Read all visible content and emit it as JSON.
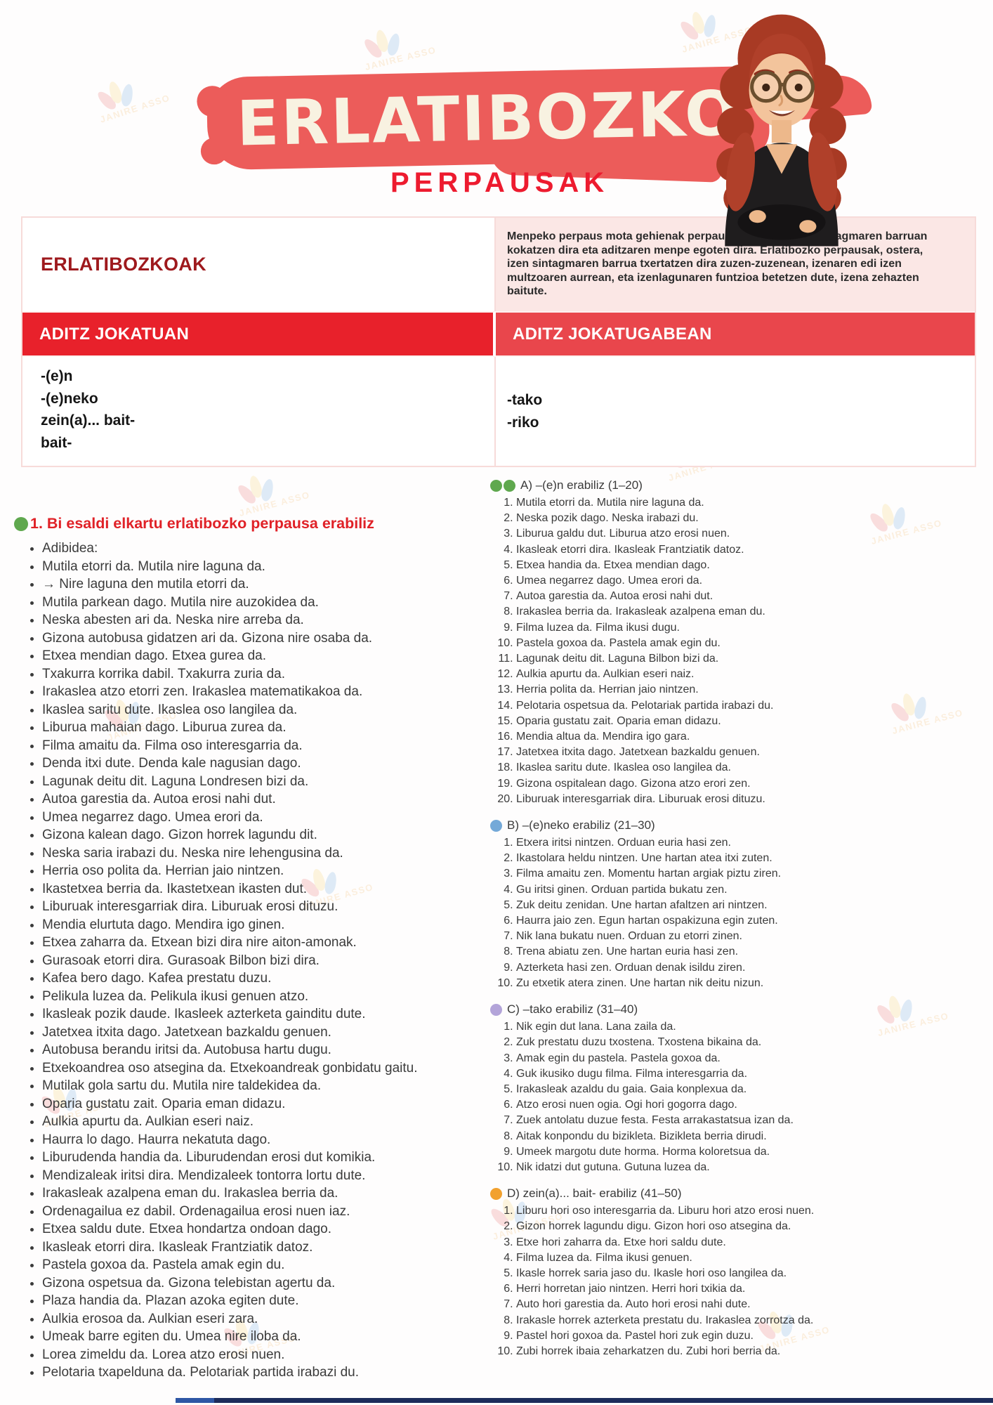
{
  "page": {
    "banner_title": "ERLATIBOZKO",
    "subtitle": "PERPAUSAK",
    "watermark": "JANIRE ASSO"
  },
  "colors": {
    "banner_red": "#ec5c5a",
    "subtitle_red": "#ed1b2f",
    "header_red_left": "#e8212b",
    "header_red_right": "#e9464c",
    "intro_dark_red": "#9e191d",
    "pink_cell": "#fbe7e5",
    "heading_red": "#e02127",
    "dot_green": "#5fa84e",
    "dot_blue": "#74a9d8",
    "dot_purple": "#b3a4d9",
    "dot_orange": "#f2a12e"
  },
  "info_table": {
    "intro_heading": "ERLATIBOZKOAK",
    "intro_paragraph": "Menpeko perpaus mota gehienak perpaus nagusiko aditz sintagmaren barruan kokatzen dira eta aditzaren menpe egoten dira. Erlatibozko perpausak, ostera, izen sintagmaren barrua txertatzen dira zuzen-zuzenean, izenaren edi izen multzoaren aurrean, eta izenlagunaren funtzioa betetzen dute, izena zehazten baitute.",
    "col_left_header": "ADITZ JOKATUAN",
    "col_right_header": "ADITZ JOKATUGABEAN",
    "left_suffixes": [
      "-(e)n",
      "-(e)neko",
      "zein(a)... bait-",
      "bait-"
    ],
    "right_suffixes": [
      "-tako",
      "-riko"
    ]
  },
  "left_column": {
    "heading": "1. Bi esaldi elkartu erlatibozko perpausa erabiliz",
    "items": [
      "Adibidea:",
      "Mutila etorri da. Mutila nire laguna da.",
      "→ Nire laguna den mutila etorri da.",
      "Mutila parkean dago. Mutila nire auzokidea da.",
      "Neska abesten ari da. Neska nire arreba da.",
      "Gizona autobusa gidatzen ari da. Gizona nire osaba da.",
      "Etxea mendian dago. Etxea gurea da.",
      "Txakurra korrika dabil. Txakurra zuria da.",
      "Irakaslea atzo etorri zen. Irakaslea matematikakoa da.",
      "Ikaslea saritu dute. Ikaslea oso langilea da.",
      "Liburua mahaian dago. Liburua zurea da.",
      "Filma amaitu da. Filma oso interesgarria da.",
      "Denda itxi dute. Denda kale nagusian dago.",
      "Lagunak deitu dit. Laguna Londresen bizi da.",
      "Autoa garestia da. Autoa erosi nahi dut.",
      "Umea negarrez dago. Umea erori da.",
      "Gizona kalean dago. Gizon horrek lagundu dit.",
      "Neska saria irabazi du. Neska nire lehengusina da.",
      "Herria oso polita da. Herrian jaio nintzen.",
      "Ikastetxea berria da. Ikastetxean ikasten dut.",
      "Liburuak interesgarriak dira. Liburuak erosi dituzu.",
      "Mendia elurtuta dago. Mendira igo ginen.",
      "Etxea zaharra da. Etxean bizi dira nire aiton-amonak.",
      "Gurasoak etorri dira. Gurasoak Bilbon bizi dira.",
      "Kafea bero dago. Kafea prestatu duzu.",
      "Pelikula luzea da. Pelikula ikusi genuen atzo.",
      "Ikasleak pozik daude. Ikasleek azterketa gainditu dute.",
      "Jatetxea itxita dago. Jatetxean bazkaldu genuen.",
      "Autobusa berandu iritsi da. Autobusa hartu dugu.",
      "Etxekoandrea oso atsegina da. Etxekoandreak gonbidatu gaitu.",
      "Mutilak gola sartu du. Mutila nire taldekidea da.",
      "Oparia gustatu zait. Oparia eman didazu.",
      "Aulkia apurtu da. Aulkian eseri naiz.",
      "Haurra lo dago. Haurra nekatuta dago.",
      "Liburudenda handia da. Liburudendan erosi dut komikia.",
      "Mendizaleak iritsi dira. Mendizaleek tontorra lortu dute.",
      "Irakasleak azalpena eman du. Irakaslea berria da.",
      "Ordenagailua ez dabil. Ordenagailua erosi nuen iaz.",
      "Etxea saldu dute. Etxea hondartza ondoan dago.",
      "Ikasleak etorri dira. Ikasleak Frantziatik datoz.",
      "Pastela goxoa da. Pastela amak egin du.",
      "Gizona ospetsua da. Gizona telebistan agertu da.",
      "Plaza handia da. Plazan azoka egiten dute.",
      "Aulkia erosoa da. Aulkian eseri zara.",
      "Umeak barre egiten du. Umea nire iloba da.",
      "Lorea zimeldu da. Lorea atzo erosi nuen.",
      "Pelotaria txapelduna da. Pelotariak partida irabazi du."
    ]
  },
  "right_column": {
    "sections": [
      {
        "id": "A",
        "label": "A) –(e)n erabiliz (1–20)",
        "dot_colors": [
          "#5fa84e",
          "#5fa84e"
        ],
        "items": [
          "Mutila etorri da. Mutila nire laguna da.",
          "Neska pozik dago. Neska irabazi du.",
          "Liburua galdu dut. Liburua atzo erosi nuen.",
          "Ikasleak etorri dira. Ikasleak Frantziatik datoz.",
          "Etxea handia da. Etxea mendian dago.",
          "Umea negarrez dago. Umea erori da.",
          "Autoa garestia da. Autoa erosi nahi dut.",
          "Irakaslea berria da. Irakasleak azalpena eman du.",
          "Filma luzea da. Filma ikusi dugu.",
          "Pastela goxoa da. Pastela amak egin du.",
          "Lagunak deitu dit. Laguna Bilbon bizi da.",
          "Aulkia apurtu da. Aulkian eseri naiz.",
          "Herria polita da. Herrian jaio nintzen.",
          "Pelotaria ospetsua da. Pelotariak partida irabazi du.",
          "Oparia gustatu zait. Oparia eman didazu.",
          "Mendia altua da. Mendira igo gara.",
          "Jatetxea itxita dago. Jatetxean bazkaldu genuen.",
          "Ikaslea saritu dute. Ikaslea oso langilea da.",
          "Gizona ospitalean dago. Gizona atzo erori zen.",
          "Liburuak interesgarriak dira. Liburuak erosi dituzu."
        ]
      },
      {
        "id": "B",
        "label": "B) –(e)neko erabiliz (21–30)",
        "dot_colors": [
          "#74a9d8"
        ],
        "items": [
          "Etxera iritsi nintzen. Orduan euria hasi zen.",
          "Ikastolara heldu nintzen. Une hartan atea itxi zuten.",
          "Filma amaitu zen. Momentu hartan argiak piztu ziren.",
          "Gu iritsi ginen. Orduan partida bukatu zen.",
          "Zuk deitu zenidan. Une hartan afaltzen ari nintzen.",
          "Haurra jaio zen. Egun hartan ospakizuna egin zuten.",
          "Nik lana bukatu nuen. Orduan zu etorri zinen.",
          "Trena abiatu zen. Une hartan euria hasi zen.",
          "Azterketa hasi zen. Orduan denak isildu ziren.",
          "Zu etxetik atera zinen. Une hartan nik deitu nizun."
        ]
      },
      {
        "id": "C",
        "label": "C) –tako erabiliz (31–40)",
        "dot_colors": [
          "#b3a4d9"
        ],
        "items": [
          "Nik egin dut lana. Lana zaila da.",
          "Zuk prestatu duzu txostena. Txostena bikaina da.",
          "Amak egin du pastela. Pastela goxoa da.",
          "Guk ikusiko dugu filma. Filma interesgarria da.",
          "Irakasleak azaldu du gaia. Gaia konplexua da.",
          "Atzo erosi nuen ogia. Ogi hori gogorra dago.",
          "Zuek antolatu duzue festa. Festa arrakastatsua izan da.",
          "Aitak konpondu du bizikleta. Bizikleta berria dirudi.",
          "Umeek margotu dute horma. Horma koloretsua da.",
          "Nik idatzi dut gutuna. Gutuna luzea da."
        ]
      },
      {
        "id": "D",
        "label": "D) zein(a)... bait- erabiliz (41–50)",
        "dot_colors": [
          "#f2a12e"
        ],
        "items": [
          "Liburu hori oso interesgarria da. Liburu hori atzo erosi nuen.",
          "Gizon horrek lagundu digu. Gizon hori oso atsegina da.",
          "Etxe hori zaharra da. Etxe hori saldu dute.",
          "Filma luzea da. Filma ikusi genuen.",
          "Ikasle horrek saria jaso du. Ikasle hori oso langilea da.",
          "Herri horretan jaio nintzen. Herri hori txikia da.",
          "Auto hori garestia da. Auto hori erosi nahi dute.",
          "Irakasle horrek azterketa prestatu du. Irakaslea zorrotza da.",
          "Pastel hori goxoa da. Pastel hori zuk egin duzu.",
          "Zubi horrek ibaia zeharkatzen du. Zubi hori berria da."
        ]
      }
    ]
  }
}
